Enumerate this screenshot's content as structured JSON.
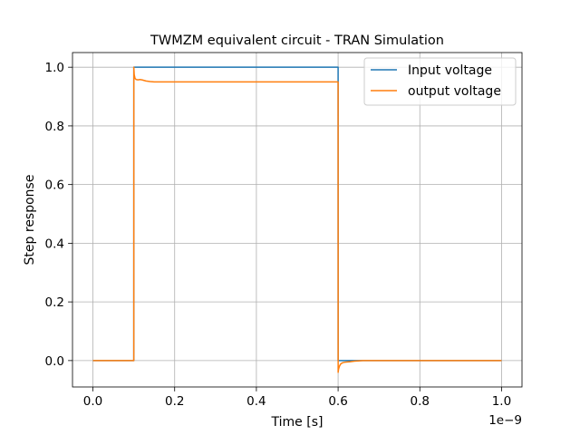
{
  "chart_data": {
    "type": "line",
    "title": "TWMZM equivalent circuit - TRAN Simulation",
    "xlabel": "Time [s]",
    "ylabel": "Step response",
    "x_offset_label": "1e−9",
    "xlim": [
      -0.05,
      1.05
    ],
    "ylim": [
      -0.09,
      1.05
    ],
    "xticks": [
      0.0,
      0.2,
      0.4,
      0.6,
      0.8,
      1.0
    ],
    "xtick_labels": [
      "0.0",
      "0.2",
      "0.4",
      "0.6",
      "0.8",
      "1.0"
    ],
    "yticks": [
      0.0,
      0.2,
      0.4,
      0.6,
      0.8,
      1.0
    ],
    "ytick_labels": [
      "0.0",
      "0.2",
      "0.4",
      "0.6",
      "0.8",
      "1.0"
    ],
    "grid": true,
    "legend_position": "top-right",
    "series": [
      {
        "name": "Input voltage",
        "color": "#1f77b4",
        "x": [
          0.0,
          0.1,
          0.1001,
          0.6,
          0.6001,
          1.0
        ],
        "y": [
          0.0,
          0.0,
          1.0,
          1.0,
          0.0,
          0.0
        ]
      },
      {
        "name": "output voltage",
        "color": "#ff7f0e",
        "x": [
          0.0,
          0.1,
          0.1001,
          0.101,
          0.103,
          0.106,
          0.11,
          0.115,
          0.12,
          0.13,
          0.14,
          0.15,
          0.6,
          0.6001,
          0.601,
          0.603,
          0.606,
          0.61,
          0.615,
          0.62,
          0.63,
          0.64,
          0.65,
          0.66,
          1.0
        ],
        "y": [
          0.0,
          0.0,
          1.0,
          0.975,
          0.962,
          0.958,
          0.957,
          0.958,
          0.957,
          0.953,
          0.951,
          0.95,
          0.95,
          -0.04,
          -0.03,
          -0.02,
          -0.012,
          -0.008,
          -0.006,
          -0.005,
          -0.004,
          -0.002,
          -0.001,
          0.0,
          0.0
        ]
      }
    ]
  }
}
